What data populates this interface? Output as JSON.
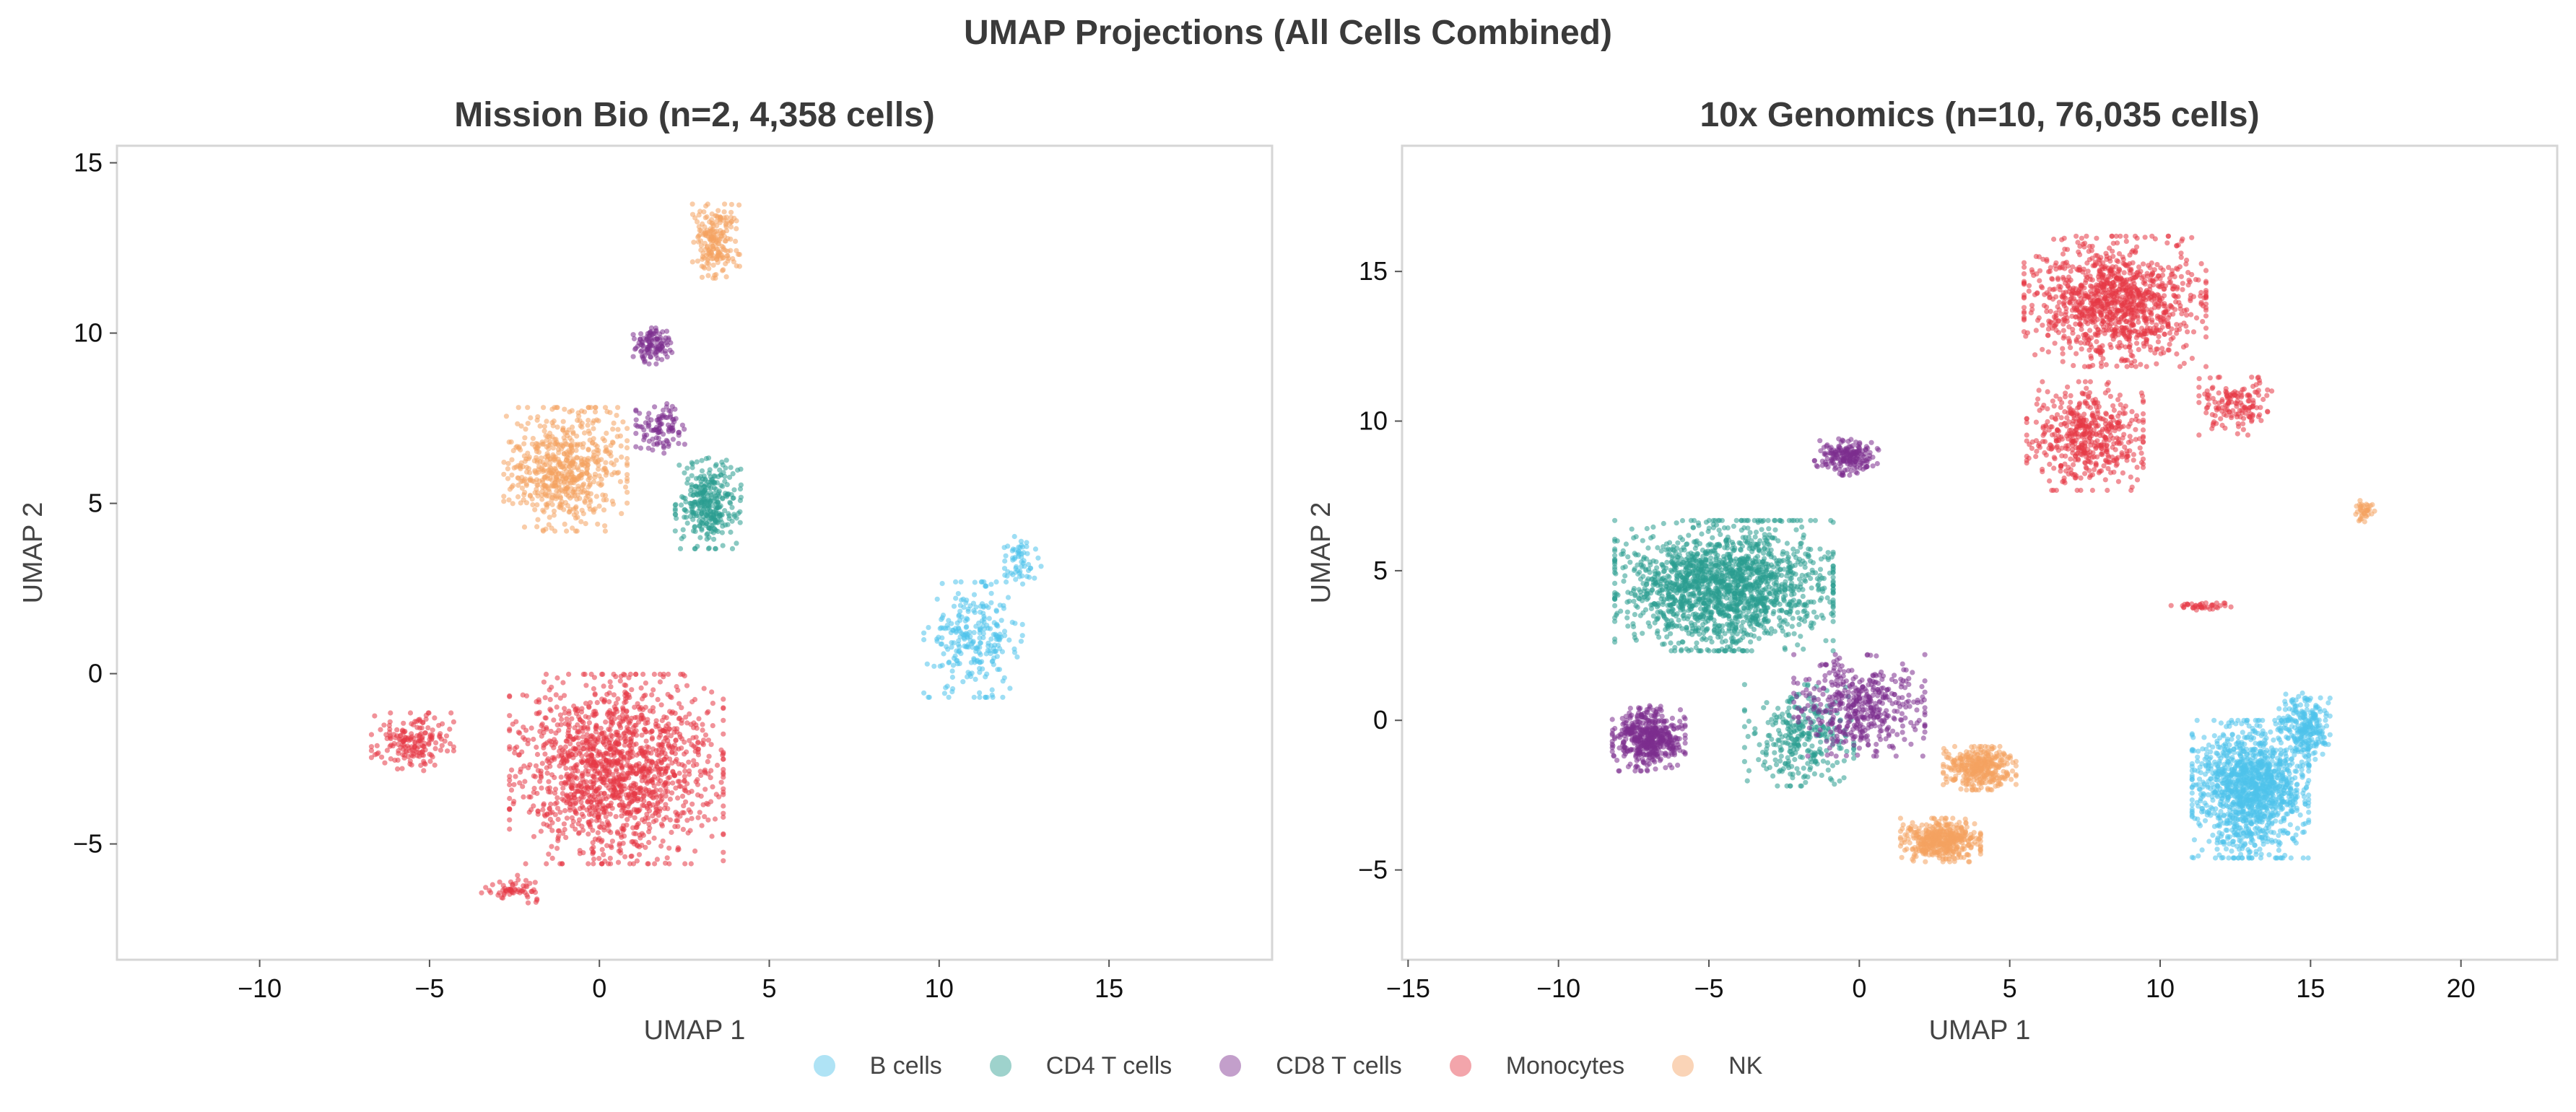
{
  "figure": {
    "title": "UMAP Projections (All Cells Combined)"
  },
  "legend": {
    "items": [
      {
        "label": "B cells",
        "color": "#4FC3EB"
      },
      {
        "label": "CD4 T cells",
        "color": "#2A9D8F"
      },
      {
        "label": "CD8 T cells",
        "color": "#7B2D8E"
      },
      {
        "label": "Monocytes",
        "color": "#E63946"
      },
      {
        "label": "NK",
        "color": "#F4A261"
      }
    ]
  },
  "chart_data": [
    {
      "type": "scatter",
      "title": "Mission Bio (n=2, 4,358 cells)",
      "xlabel": "UMAP 1",
      "ylabel": "UMAP 2",
      "xlim": [
        -14.2,
        19.8
      ],
      "ylim": [
        -8.4,
        15.5
      ],
      "xticks": [
        -10,
        -5,
        0,
        5,
        10,
        15
      ],
      "yticks": [
        -5,
        0,
        5,
        10,
        15
      ],
      "grid": false,
      "series": [
        {
          "name": "B cells",
          "clusters": [
            {
              "center": [
                11.0,
                1.0
              ],
              "spread": [
                1.2,
                1.4
              ],
              "count": 260
            },
            {
              "center": [
                12.4,
                3.3
              ],
              "spread": [
                0.5,
                0.6
              ],
              "count": 60
            }
          ]
        },
        {
          "name": "CD4 T cells",
          "clusters": [
            {
              "center": [
                3.2,
                5.0
              ],
              "spread": [
                0.8,
                1.1
              ],
              "count": 320
            }
          ]
        },
        {
          "name": "CD8 T cells",
          "clusters": [
            {
              "center": [
                1.6,
                9.7
              ],
              "spread": [
                0.5,
                0.5
              ],
              "count": 110
            },
            {
              "center": [
                1.8,
                7.2
              ],
              "spread": [
                0.6,
                0.6
              ],
              "count": 100
            }
          ]
        },
        {
          "name": "Monocytes",
          "clusters": [
            {
              "center": [
                0.5,
                -2.8
              ],
              "spread": [
                2.6,
                2.3
              ],
              "count": 1500
            },
            {
              "center": [
                -5.5,
                -2.0
              ],
              "spread": [
                1.0,
                0.7
              ],
              "count": 180
            },
            {
              "center": [
                -2.5,
                -6.3
              ],
              "spread": [
                0.8,
                0.4
              ],
              "count": 60
            }
          ]
        },
        {
          "name": "NK",
          "clusters": [
            {
              "center": [
                -1.0,
                6.0
              ],
              "spread": [
                1.5,
                1.5
              ],
              "count": 600
            },
            {
              "center": [
                3.4,
                12.7
              ],
              "spread": [
                0.6,
                0.9
              ],
              "count": 200
            }
          ]
        }
      ]
    },
    {
      "type": "scatter",
      "title": "10x Genomics (n=10, 76,035 cells)",
      "xlabel": "UMAP 1",
      "ylabel": "UMAP 2",
      "xlim": [
        -15.2,
        23.2
      ],
      "ylim": [
        -8.0,
        19.2
      ],
      "xticks": [
        -15,
        -10,
        -5,
        0,
        5,
        10,
        15,
        20
      ],
      "yticks": [
        -5,
        0,
        5,
        10,
        15
      ],
      "grid": false,
      "series": [
        {
          "name": "B cells",
          "clusters": [
            {
              "center": [
                13.0,
                -2.3
              ],
              "spread": [
                1.6,
                1.9
              ],
              "count": 1300
            },
            {
              "center": [
                14.8,
                -0.3
              ],
              "spread": [
                0.7,
                1.0
              ],
              "count": 250
            }
          ]
        },
        {
          "name": "CD4 T cells",
          "clusters": [
            {
              "center": [
                -4.5,
                4.5
              ],
              "spread": [
                3.0,
                1.8
              ],
              "count": 1700
            },
            {
              "center": [
                -2.0,
                -0.5
              ],
              "spread": [
                1.5,
                1.4
              ],
              "count": 300
            }
          ]
        },
        {
          "name": "CD8 T cells",
          "clusters": [
            {
              "center": [
                -7.0,
                -0.6
              ],
              "spread": [
                1.0,
                0.9
              ],
              "count": 500
            },
            {
              "center": [
                -0.4,
                8.8
              ],
              "spread": [
                0.9,
                0.5
              ],
              "count": 200
            },
            {
              "center": [
                0.0,
                0.5
              ],
              "spread": [
                1.8,
                1.4
              ],
              "count": 450
            }
          ]
        },
        {
          "name": "Monocytes",
          "clusters": [
            {
              "center": [
                8.5,
                14.0
              ],
              "spread": [
                2.5,
                1.8
              ],
              "count": 1100
            },
            {
              "center": [
                7.5,
                9.5
              ],
              "spread": [
                1.6,
                1.5
              ],
              "count": 500
            },
            {
              "center": [
                12.5,
                10.5
              ],
              "spread": [
                1.0,
                0.8
              ],
              "count": 150
            },
            {
              "center": [
                11.5,
                3.8
              ],
              "spread": [
                1.0,
                0.1
              ],
              "count": 40
            }
          ]
        },
        {
          "name": "NK",
          "clusters": [
            {
              "center": [
                2.7,
                -4.0
              ],
              "spread": [
                1.1,
                0.6
              ],
              "count": 450
            },
            {
              "center": [
                4.0,
                -1.6
              ],
              "spread": [
                1.0,
                0.6
              ],
              "count": 350
            },
            {
              "center": [
                16.8,
                7.0
              ],
              "spread": [
                0.3,
                0.3
              ],
              "count": 40
            }
          ]
        }
      ]
    }
  ]
}
